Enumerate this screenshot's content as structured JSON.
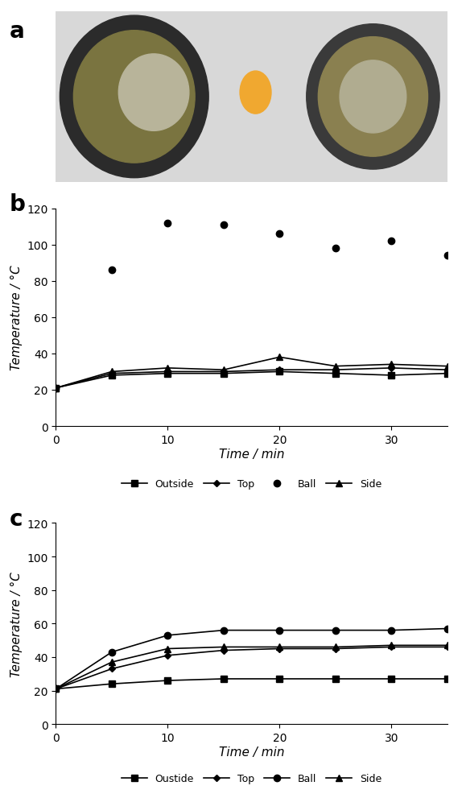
{
  "photo_panel": {
    "panel": "a"
  },
  "chart_data": [
    {
      "panel": "b",
      "type": "line",
      "x_label": "Time / min",
      "y_label": "Temperature / °C",
      "x": [
        0,
        5,
        10,
        15,
        20,
        25,
        30,
        35
      ],
      "xlim": [
        0,
        35
      ],
      "xticks": [
        0,
        10,
        20,
        30
      ],
      "ylim": [
        0,
        120
      ],
      "yticks": [
        0,
        20,
        40,
        60,
        80,
        100,
        120
      ],
      "legend": "upper center",
      "series": [
        {
          "name": "Outside",
          "color": "#000000",
          "marker": "square",
          "line_style": "solid",
          "values": [
            21,
            28,
            29,
            29,
            30,
            29,
            28,
            29
          ]
        },
        {
          "name": "Top",
          "color": "#000000",
          "marker": "diamond",
          "line_style": "solid",
          "values": [
            21,
            29,
            30,
            30,
            31,
            31,
            32,
            31
          ]
        },
        {
          "name": "Ball",
          "color": "#000000",
          "marker": "circle",
          "line_style": "none",
          "values": [
            21,
            86,
            112,
            111,
            106,
            98,
            102,
            94
          ]
        },
        {
          "name": "Side",
          "color": "#000000",
          "marker": "triangle",
          "line_style": "solid",
          "values": [
            21,
            30,
            32,
            31,
            38,
            33,
            34,
            33
          ]
        }
      ]
    },
    {
      "panel": "c",
      "type": "line",
      "x_label": "Time / min",
      "y_label": "Temperature / °C",
      "x": [
        0,
        5,
        10,
        15,
        20,
        25,
        30,
        35
      ],
      "xlim": [
        0,
        35
      ],
      "xticks": [
        0,
        10,
        20,
        30
      ],
      "ylim": [
        0,
        120
      ],
      "yticks": [
        0,
        20,
        40,
        60,
        80,
        100,
        120
      ],
      "legend": "upper center",
      "series": [
        {
          "name": "Oustide",
          "color": "#000000",
          "marker": "square",
          "line_style": "solid",
          "values": [
            21,
            24,
            26,
            27,
            27,
            27,
            27,
            27
          ]
        },
        {
          "name": "Top",
          "color": "#000000",
          "marker": "diamond",
          "line_style": "solid",
          "values": [
            21,
            33,
            41,
            44,
            45,
            45,
            46,
            46
          ]
        },
        {
          "name": "Ball",
          "color": "#000000",
          "marker": "circle",
          "line_style": "solid",
          "values": [
            21,
            43,
            53,
            56,
            56,
            56,
            56,
            57
          ]
        },
        {
          "name": "Side",
          "color": "#000000",
          "marker": "triangle",
          "line_style": "solid",
          "values": [
            21,
            37,
            45,
            46,
            46,
            46,
            47,
            47
          ]
        }
      ]
    }
  ]
}
